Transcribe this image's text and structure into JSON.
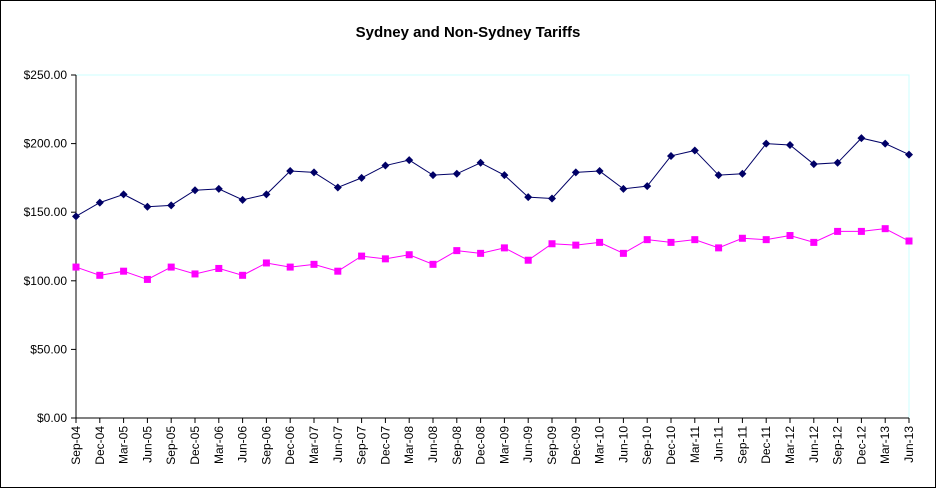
{
  "chart_data": {
    "type": "line",
    "title": "Sydney and Non-Sydney Tariffs",
    "xlabel": "",
    "ylabel": "",
    "ylim": [
      0,
      250
    ],
    "yticks": [
      "$0.00",
      "$50.00",
      "$100.00",
      "$150.00",
      "$200.00",
      "$250.00"
    ],
    "grid": false,
    "legend": "none",
    "categories": [
      "Sep-04",
      "Dec-04",
      "Mar-05",
      "Jun-05",
      "Sep-05",
      "Dec-05",
      "Mar-06",
      "Jun-06",
      "Sep-06",
      "Dec-06",
      "Mar-07",
      "Jun-07",
      "Sep-07",
      "Dec-07",
      "Mar-08",
      "Jun-08",
      "Sep-08",
      "Dec-08",
      "Mar-09",
      "Jun-09",
      "Sep-09",
      "Dec-09",
      "Mar-10",
      "Jun-10",
      "Sep-10",
      "Dec-10",
      "Mar-11",
      "Jun-11",
      "Sep-11",
      "Dec-11",
      "Mar-12",
      "Jun-12",
      "Sep-12",
      "Dec-12",
      "Mar-13",
      "Jun-13"
    ],
    "series": [
      {
        "color": "#000066",
        "marker": "diamond",
        "values": [
          147,
          157,
          163,
          154,
          155,
          166,
          167,
          159,
          163,
          180,
          179,
          168,
          175,
          184,
          188,
          177,
          178,
          186,
          177,
          161,
          160,
          179,
          180,
          167,
          169,
          191,
          195,
          177,
          178,
          200,
          199,
          185,
          186,
          204,
          200,
          192
        ]
      },
      {
        "color": "#ff00ff",
        "marker": "square",
        "values": [
          110,
          104,
          107,
          101,
          110,
          105,
          109,
          104,
          113,
          110,
          112,
          107,
          118,
          116,
          119,
          112,
          122,
          120,
          124,
          115,
          127,
          126,
          128,
          120,
          130,
          128,
          130,
          124,
          131,
          130,
          133,
          128,
          136,
          136,
          138,
          129
        ]
      }
    ]
  }
}
